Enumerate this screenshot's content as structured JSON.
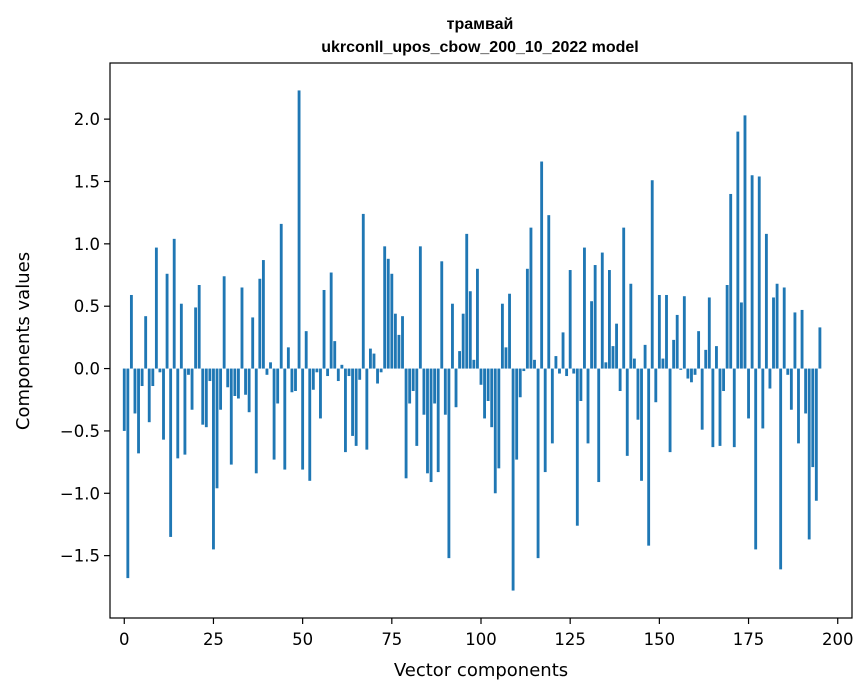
{
  "chart_data": {
    "type": "bar",
    "title": "трамвай",
    "subtitle": "ukrconll_upos_cbow_200_10_2022 model",
    "xlabel": "Vector components",
    "ylabel": "Components values",
    "xlim": [
      -4,
      204
    ],
    "ylim": [
      -2.0,
      2.45
    ],
    "xticks": [
      0,
      25,
      50,
      75,
      100,
      125,
      150,
      175,
      200
    ],
    "yticks": [
      -1.5,
      -1.0,
      -0.5,
      0.0,
      0.5,
      1.0,
      1.5,
      2.0
    ],
    "ytick_labels": [
      "−1.5",
      "−1.0",
      "−0.5",
      "0.0",
      "0.5",
      "1.0",
      "1.5",
      "2.0"
    ],
    "bar_color": "#1f77b4",
    "values": [
      -0.5,
      -1.68,
      0.59,
      -0.36,
      -0.68,
      -0.14,
      0.42,
      -0.43,
      -0.14,
      0.97,
      -0.03,
      -0.57,
      0.76,
      -1.35,
      1.04,
      -0.72,
      0.52,
      -0.69,
      -0.05,
      -0.33,
      0.49,
      0.67,
      -0.45,
      -0.47,
      -0.1,
      -1.45,
      -0.96,
      -0.33,
      0.74,
      -0.15,
      -0.77,
      -0.22,
      -0.24,
      0.65,
      -0.21,
      -0.35,
      0.41,
      -0.84,
      0.72,
      0.87,
      -0.05,
      0.05,
      -0.73,
      -0.28,
      1.16,
      -0.81,
      0.17,
      -0.19,
      -0.18,
      2.23,
      -0.81,
      0.3,
      -0.9,
      -0.17,
      -0.03,
      -0.4,
      0.63,
      -0.06,
      0.77,
      0.22,
      -0.1,
      0.03,
      -0.67,
      -0.06,
      -0.54,
      -0.62,
      -0.09,
      1.24,
      -0.65,
      0.16,
      0.12,
      -0.12,
      -0.03,
      0.98,
      0.88,
      0.76,
      0.44,
      0.27,
      0.42,
      -0.88,
      -0.28,
      -0.18,
      -0.62,
      0.98,
      -0.37,
      -0.84,
      -0.91,
      -0.28,
      -0.83,
      0.86,
      -0.37,
      -1.52,
      0.52,
      -0.31,
      0.14,
      0.44,
      1.08,
      0.62,
      0.07,
      0.8,
      -0.13,
      -0.4,
      -0.26,
      -0.47,
      -1.0,
      -0.8,
      0.52,
      0.17,
      0.6,
      -1.78,
      -0.73,
      -0.23,
      -0.02,
      0.8,
      1.13,
      0.07,
      -1.52,
      1.66,
      -0.83,
      1.23,
      -0.6,
      0.1,
      -0.04,
      0.29,
      -0.06,
      0.79,
      -0.04,
      -1.26,
      -0.26,
      0.97,
      -0.6,
      0.54,
      0.83,
      -0.91,
      0.93,
      0.05,
      0.79,
      0.18,
      0.36,
      -0.18,
      1.13,
      -0.7,
      0.68,
      0.08,
      -0.41,
      -0.9,
      0.19,
      -1.42,
      1.51,
      -0.27,
      0.59,
      0.08,
      0.59,
      -0.67,
      0.23,
      0.43,
      -0.01,
      0.58,
      -0.08,
      -0.11,
      -0.05,
      0.3,
      -0.49,
      0.15,
      0.57,
      -0.63,
      0.18,
      -0.62,
      -0.18,
      0.67,
      1.4,
      -0.63,
      1.9,
      0.53,
      2.03,
      -0.4,
      1.55,
      -1.45,
      1.54,
      -0.48,
      1.08,
      -0.16,
      0.57,
      0.68,
      -1.61,
      0.65,
      -0.05,
      -0.33,
      0.45,
      -0.6,
      0.47,
      -0.36,
      -1.37,
      -0.79,
      -1.06,
      0.33
    ]
  }
}
